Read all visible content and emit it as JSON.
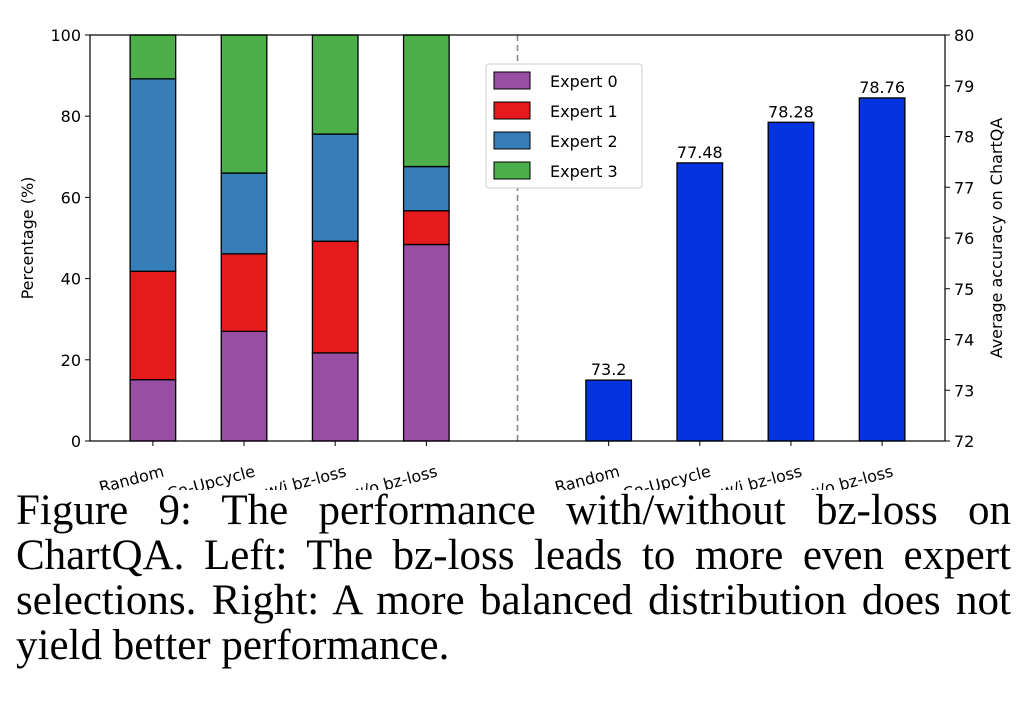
{
  "chart_data": {
    "type": "bar",
    "left": {
      "type": "stacked-bar",
      "categories": [
        "Random",
        "Co-Upcycle",
        "w/i bz-loss",
        "w/o bz-loss"
      ],
      "ylabel": "Percentage (%)",
      "ylim": [
        0,
        100
      ],
      "yticks": [
        0,
        20,
        40,
        60,
        80,
        100
      ],
      "series": [
        {
          "name": "Expert 0",
          "color": "#984ea3",
          "values": [
            15.1,
            27.0,
            21.7,
            48.4
          ]
        },
        {
          "name": "Expert 1",
          "color": "#e41a1c",
          "values": [
            26.7,
            19.1,
            27.5,
            8.3
          ]
        },
        {
          "name": "Expert 2",
          "color": "#377eb8",
          "values": [
            47.4,
            19.9,
            26.4,
            10.9
          ]
        },
        {
          "name": "Expert 3",
          "color": "#4daf4a",
          "values": [
            10.8,
            34.0,
            24.4,
            32.4
          ]
        }
      ],
      "legend": "top-center"
    },
    "right": {
      "type": "bar",
      "categories": [
        "Random",
        "Co-Upcycle",
        "w/i bz-loss",
        "w/o bz-loss"
      ],
      "values": [
        73.2,
        77.48,
        78.28,
        78.76
      ],
      "labels": [
        "73.2",
        "77.48",
        "78.28",
        "78.76"
      ],
      "color": "#0433e0",
      "ylabel": "Average accuracy on ChartQA",
      "ylim": [
        72,
        80
      ],
      "yticks": [
        72,
        73,
        74,
        75,
        76,
        77,
        78,
        79,
        80
      ]
    },
    "divider": "dashed vertical line"
  },
  "caption": "Figure 9: The performance with/without bz-loss on ChartQA. Left: The bz-loss leads to more even expert selections. Right: A more balanced distribution does not yield better performance."
}
